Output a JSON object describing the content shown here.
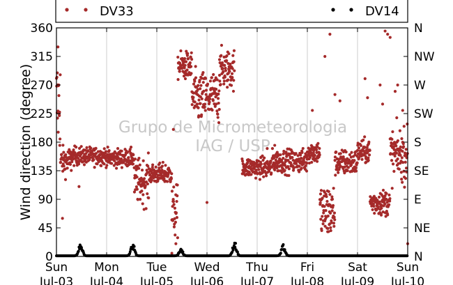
{
  "chart_data": {
    "type": "scatter",
    "title": "",
    "ylabel": "Wind direction (degree)",
    "xlabel": "",
    "ylim": [
      0,
      360
    ],
    "xlim": [
      0,
      7
    ],
    "y_ticks": [
      0,
      45,
      90,
      135,
      180,
      225,
      270,
      315,
      360
    ],
    "y_ticks_right": [
      "N",
      "NE",
      "E",
      "SE",
      "S",
      "SW",
      "W",
      "NW",
      "N"
    ],
    "x_ticks": [
      {
        "day": "Sun",
        "date": "Jul-03"
      },
      {
        "day": "Mon",
        "date": "Jul-04"
      },
      {
        "day": "Tue",
        "date": "Jul-05"
      },
      {
        "day": "Wed",
        "date": "Jul-06"
      },
      {
        "day": "Thu",
        "date": "Jul-07"
      },
      {
        "day": "Fri",
        "date": "Jul-08"
      },
      {
        "day": "Sat",
        "date": "Jul-09"
      },
      {
        "day": "Sun",
        "date": "Jul-10"
      }
    ],
    "grid": "vertical",
    "legend_position": "top",
    "watermark": [
      "Grupo de Micrometeorologia",
      "IAG / USP"
    ],
    "series": [
      {
        "name": "DV33",
        "color": "#a52a2a",
        "segments": [
          {
            "x0": 0.0,
            "x1": 0.08,
            "mean": 240,
            "spread": 80
          },
          {
            "x0": 0.08,
            "x1": 0.3,
            "mean": 150,
            "spread": 22
          },
          {
            "x0": 0.3,
            "x1": 1.0,
            "mean": 158,
            "spread": 14
          },
          {
            "x0": 1.0,
            "x1": 1.55,
            "mean": 155,
            "spread": 14
          },
          {
            "x0": 1.55,
            "x1": 1.85,
            "mean": 118,
            "spread": 35
          },
          {
            "x0": 1.85,
            "x1": 2.3,
            "mean": 130,
            "spread": 16
          },
          {
            "x0": 2.3,
            "x1": 2.42,
            "mean": 70,
            "spread": 40
          },
          {
            "x0": 2.42,
            "x1": 2.7,
            "mean": 300,
            "spread": 22
          },
          {
            "x0": 2.7,
            "x1": 3.25,
            "mean": 250,
            "spread": 40
          },
          {
            "x0": 3.25,
            "x1": 3.55,
            "mean": 295,
            "spread": 30
          },
          {
            "x0": 3.7,
            "x1": 4.3,
            "mean": 140,
            "spread": 16
          },
          {
            "x0": 4.3,
            "x1": 5.0,
            "mean": 150,
            "spread": 18
          },
          {
            "x0": 5.0,
            "x1": 5.25,
            "mean": 165,
            "spread": 18
          },
          {
            "x0": 5.25,
            "x1": 5.55,
            "mean": 70,
            "spread": 45
          },
          {
            "x0": 5.55,
            "x1": 6.0,
            "mean": 148,
            "spread": 20
          },
          {
            "x0": 6.0,
            "x1": 6.25,
            "mean": 165,
            "spread": 18
          },
          {
            "x0": 6.25,
            "x1": 6.65,
            "mean": 85,
            "spread": 20
          },
          {
            "x0": 6.65,
            "x1": 7.0,
            "mean": 160,
            "spread": 40
          }
        ],
        "scatter_x": [
          0.03,
          0.12,
          0.45,
          2.3,
          2.33,
          2.38,
          3.0,
          3.25,
          4.2,
          4.35,
          5.1,
          5.35,
          5.45,
          5.55,
          5.65,
          6.15,
          6.2,
          6.45,
          6.5,
          6.55,
          6.6,
          6.65,
          6.75,
          6.8,
          6.9,
          7.0
        ],
        "scatter_y": [
          330,
          60,
          110,
          5,
          200,
          20,
          85,
          310,
          170,
          175,
          230,
          315,
          350,
          255,
          245,
          280,
          250,
          270,
          240,
          355,
          350,
          345,
          260,
          270,
          230,
          20
        ]
      },
      {
        "name": "DV14",
        "color": "#000000",
        "baseline": 1,
        "bump_days": [
          0.48,
          1.52,
          2.48,
          3.55,
          4.52
        ],
        "bump_heights": [
          22,
          22,
          12,
          25,
          18
        ]
      }
    ]
  }
}
